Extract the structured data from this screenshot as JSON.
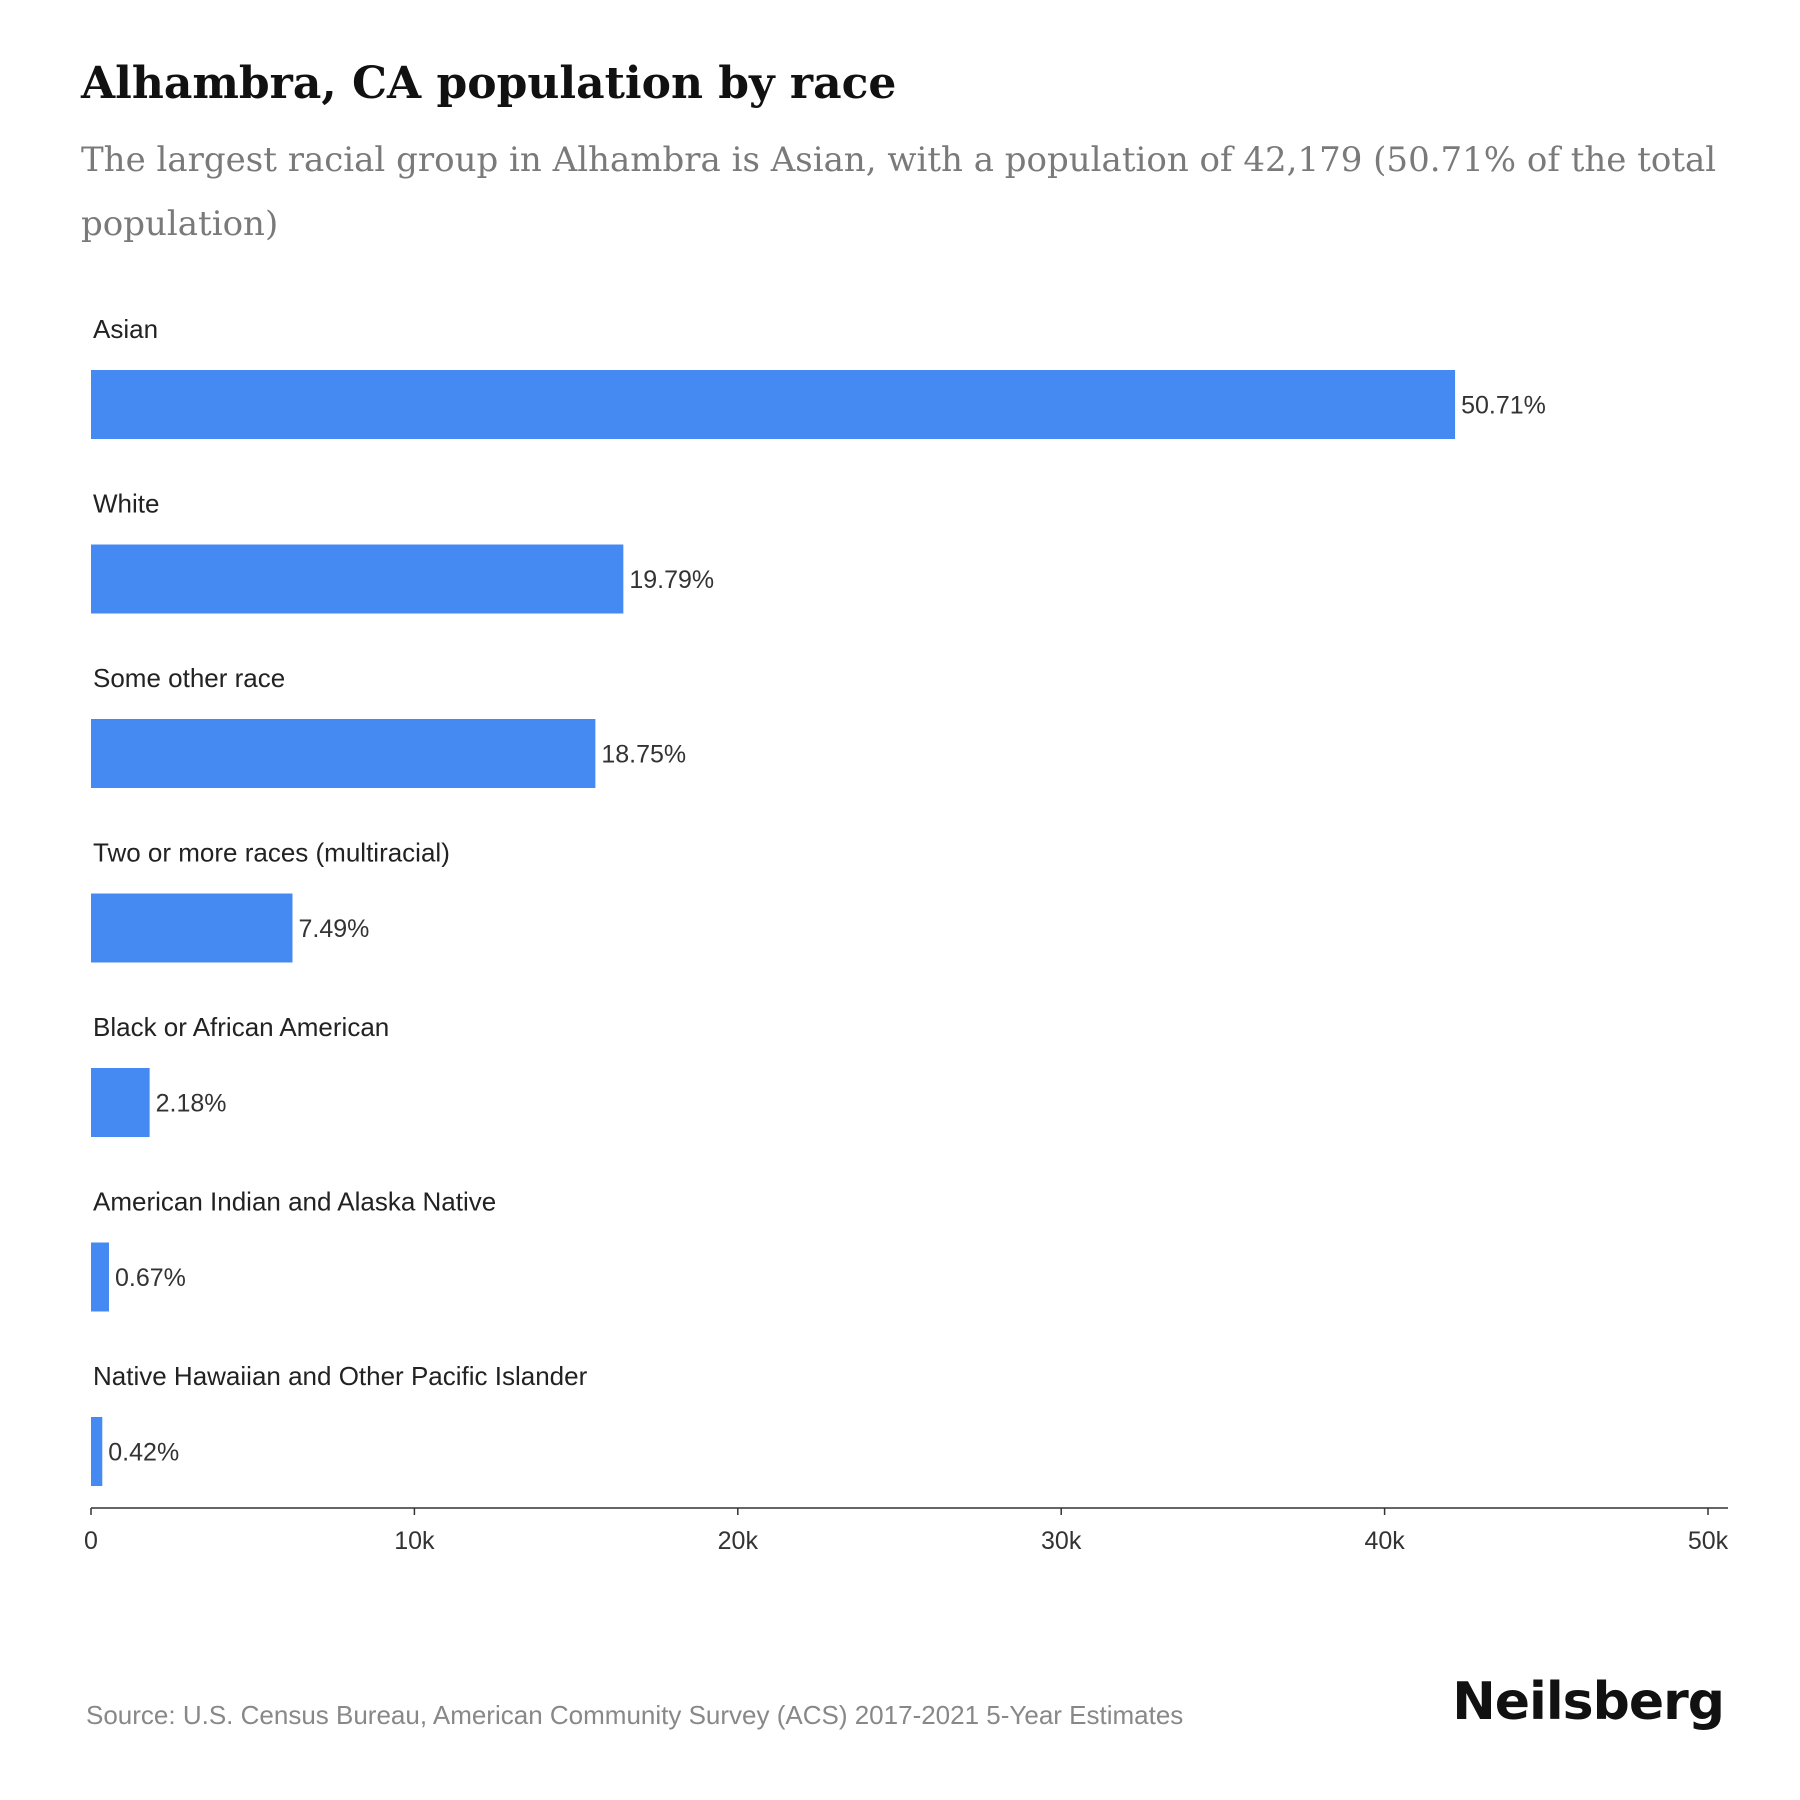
{
  "header": {
    "title": "Alhambra, CA population by race",
    "subtitle": "The largest racial group in Alhambra is Asian, with a population of 42,179 (50.71% of the total population)"
  },
  "chart_data": {
    "type": "bar",
    "orientation": "horizontal",
    "categories": [
      "Asian",
      "White",
      "Some other race",
      "Two or more races (multiracial)",
      "Black or African American",
      "American Indian and Alaska Native",
      "Native Hawaiian and Other Pacific Islander"
    ],
    "values": [
      42179,
      16461,
      15596,
      6230,
      1813,
      557,
      349
    ],
    "value_labels": [
      "50.71%",
      "19.79%",
      "18.75%",
      "7.49%",
      "2.18%",
      "0.67%",
      "0.42%"
    ],
    "xlim": [
      0,
      50000
    ],
    "xticks": [
      0,
      10000,
      20000,
      30000,
      40000,
      50000
    ],
    "xtick_labels": [
      "0",
      "10k",
      "20k",
      "30k",
      "40k",
      "50k"
    ],
    "bar_color": "#4589f3",
    "grid": false
  },
  "footer": {
    "source": "Source: U.S. Census Bureau, American Community Survey (ACS) 2017-2021 5-Year Estimates",
    "brand": "Neilsberg"
  }
}
